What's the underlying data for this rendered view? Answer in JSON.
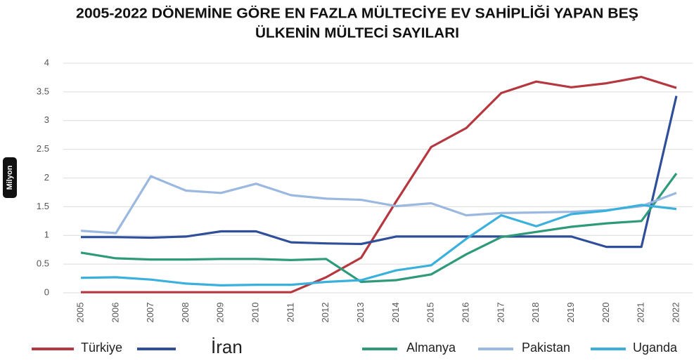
{
  "chart_data": {
    "type": "line",
    "title": [
      "2005-2022 DÖNEMİNE GÖRE  EN FAZLA MÜLTECİYE EV SAHİPLİĞİ YAPAN BEŞ",
      "ÜLKENİN MÜLTECİ SAYILARI"
    ],
    "y_label": "Milyon",
    "categories": [
      "2005",
      "2006",
      "2007",
      "2008",
      "2009",
      "2010",
      "2011",
      "2012",
      "2013",
      "2014",
      "2015",
      "2016",
      "2017",
      "2018",
      "2019",
      "2020",
      "2021",
      "2022"
    ],
    "ylim": [
      0,
      4
    ],
    "yticks": [
      0,
      0.5,
      1,
      1.5,
      2,
      2.5,
      3,
      3.5,
      4
    ],
    "grid": true,
    "series": [
      {
        "name": "Türkiye",
        "color": "#b5373f",
        "values": [
          0.01,
          0.01,
          0.01,
          0.01,
          0.01,
          0.01,
          0.01,
          0.27,
          0.61,
          1.59,
          2.54,
          2.87,
          3.48,
          3.68,
          3.58,
          3.65,
          3.76,
          3.57
        ]
      },
      {
        "name": "İran",
        "color": "#2f4f9a",
        "values": [
          0.97,
          0.97,
          0.96,
          0.98,
          1.07,
          1.07,
          0.88,
          0.86,
          0.85,
          0.98,
          0.98,
          0.98,
          0.98,
          0.98,
          0.98,
          0.8,
          0.8,
          3.43
        ]
      },
      {
        "name": "Almanya",
        "color": "#2e9a7a",
        "values": [
          0.7,
          0.6,
          0.58,
          0.58,
          0.59,
          0.59,
          0.57,
          0.59,
          0.19,
          0.22,
          0.32,
          0.67,
          0.97,
          1.06,
          1.15,
          1.21,
          1.25,
          2.08
        ]
      },
      {
        "name": "Pakistan",
        "color": "#9bb8e0",
        "values": [
          1.08,
          1.04,
          2.03,
          1.78,
          1.74,
          1.9,
          1.7,
          1.64,
          1.62,
          1.51,
          1.56,
          1.35,
          1.39,
          1.4,
          1.41,
          1.44,
          1.51,
          1.74
        ]
      },
      {
        "name": "Uganda",
        "color": "#3ab0dc",
        "values": [
          0.26,
          0.27,
          0.23,
          0.16,
          0.13,
          0.14,
          0.14,
          0.19,
          0.22,
          0.39,
          0.48,
          0.94,
          1.35,
          1.16,
          1.37,
          1.43,
          1.53,
          1.46
        ]
      }
    ]
  }
}
